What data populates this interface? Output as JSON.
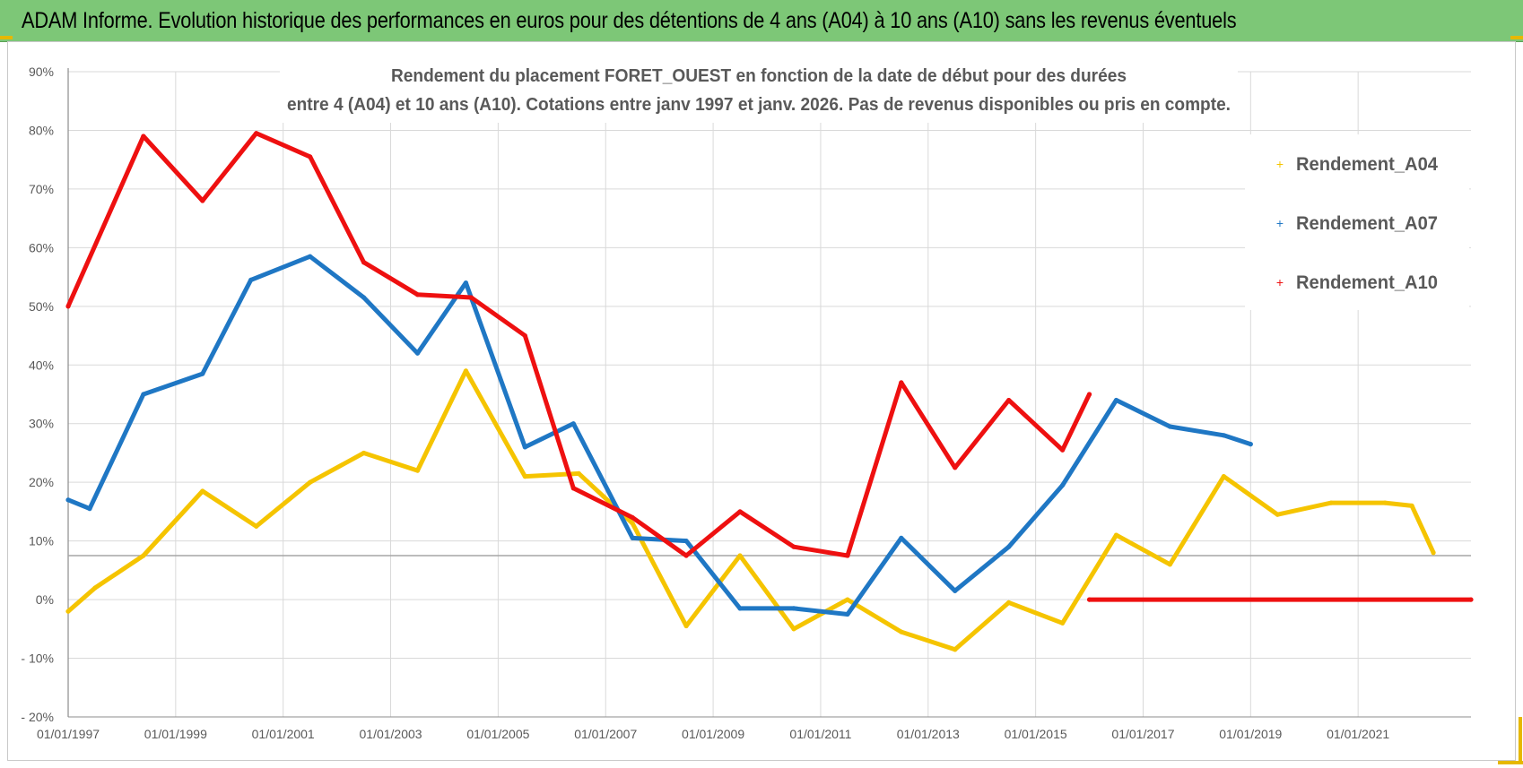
{
  "banner": {
    "title": "ADAM Informe. Evolution historique des performances en euros pour des détentions de 4 ans (A04) à 10 ans (A10) sans les revenus éventuels"
  },
  "colors": {
    "banner_bg": "#7dc777",
    "A04": "#f5c400",
    "A07": "#1f77c4",
    "A10": "#ee1010",
    "grid": "#d9d9d9"
  },
  "chart_data": {
    "type": "line",
    "title_line1": "Rendement du placement FORET_OUEST en fonction de la date de début pour des durées",
    "title_line2": "entre 4 (A04) et 10 ans (A10).  Cotations entre janv 1997 et janv. 2026. Pas de revenus disponibles ou pris en compte.",
    "x_range": [
      1997.0,
      2023.1
    ],
    "ylim": [
      -20,
      90
    ],
    "y_ticks": [
      -20,
      -10,
      0,
      10,
      20,
      30,
      40,
      50,
      60,
      70,
      80,
      90
    ],
    "y_tick_labels": [
      "- 20%",
      "- 10%",
      "0%",
      "10%",
      "20%",
      "30%",
      "40%",
      "50%",
      "60%",
      "70%",
      "80%",
      "90%"
    ],
    "x_ticks": [
      1997,
      1999,
      2001,
      2003,
      2005,
      2007,
      2009,
      2011,
      2013,
      2015,
      2017,
      2019,
      2021
    ],
    "x_tick_labels": [
      "01/01/1997",
      "01/01/1999",
      "01/01/2001",
      "01/01/2003",
      "01/01/2005",
      "01/01/2007",
      "01/01/2009",
      "01/01/2011",
      "01/01/2013",
      "01/01/2015",
      "01/01/2017",
      "01/01/2019",
      "01/01/2021"
    ],
    "reference_line": 7.5,
    "legend": [
      "Rendement_A04",
      "Rendement_A07",
      "Rendement_A10"
    ],
    "series": [
      {
        "name": "Rendement_A04",
        "x": [
          1997.0,
          1997.5,
          1998.4,
          1999.5,
          2000.5,
          2001.5,
          2002.5,
          2003.5,
          2004.4,
          2005.5,
          2006.5,
          2007.5,
          2008.5,
          2009.5,
          2010.5,
          2011.5,
          2012.5,
          2013.5,
          2014.5,
          2015.5,
          2016.5,
          2017.5,
          2018.5,
          2019.5,
          2020.5,
          2021.5,
          2022.0,
          2022.4
        ],
        "values": [
          -2,
          2,
          7.5,
          18.5,
          12.5,
          20,
          25,
          22,
          39,
          21,
          21.5,
          13,
          -4.5,
          7.5,
          -5,
          0,
          -5.5,
          -8.5,
          -0.5,
          -4,
          11,
          6,
          21,
          14.5,
          16.5,
          16.5,
          16,
          8
        ]
      },
      {
        "name": "Rendement_A07",
        "x": [
          1997.0,
          1997.4,
          1998.4,
          1999.5,
          2000.4,
          2001.5,
          2002.5,
          2003.5,
          2004.4,
          2005.5,
          2006.4,
          2007.5,
          2008.5,
          2009.5,
          2010.5,
          2011.5,
          2012.5,
          2013.5,
          2014.5,
          2015.5,
          2016.5,
          2017.5,
          2018.5,
          2019.0
        ],
        "values": [
          17,
          15.5,
          35,
          38.5,
          54.5,
          58.5,
          51.5,
          42,
          54,
          26,
          30,
          10.5,
          10,
          -1.5,
          -1.5,
          -2.5,
          10.5,
          1.5,
          9,
          19.5,
          34,
          29.5,
          28,
          26.5
        ]
      },
      {
        "name": "Rendement_A10",
        "x": [
          1997.0,
          1998.4,
          1999.5,
          2000.5,
          2001.5,
          2002.5,
          2003.5,
          2004.5,
          2005.5,
          2006.4,
          2007.5,
          2008.5,
          2009.5,
          2010.5,
          2011.5,
          2012.5,
          2013.5,
          2014.5,
          2015.5,
          2016.0
        ],
        "values": [
          50,
          79,
          68,
          79.5,
          75.5,
          57.5,
          52,
          51.5,
          45,
          19,
          14,
          7.5,
          15,
          9,
          7.5,
          37,
          22.5,
          34,
          25.5,
          35
        ]
      },
      {
        "name": "Rendement_A10",
        "x": [
          2016.0,
          2023.1
        ],
        "values": [
          0,
          0
        ]
      }
    ]
  }
}
